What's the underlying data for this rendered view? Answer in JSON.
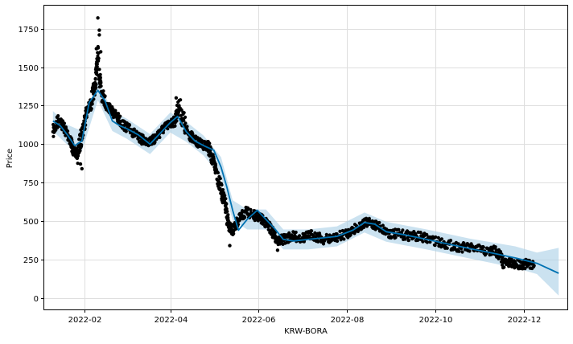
{
  "chart_data": {
    "type": "scatter",
    "title": "",
    "xlabel": "KRW-BORA",
    "ylabel": "Price",
    "x_ticks": [
      "2022-02",
      "2022-04",
      "2022-06",
      "2022-08",
      "2022-10",
      "2022-12"
    ],
    "y_ticks": [
      0,
      250,
      500,
      750,
      1000,
      1250,
      1500,
      1750
    ],
    "xlim": [
      "2022-01-04",
      "2022-12-31"
    ],
    "ylim": [
      -75,
      1900
    ],
    "grid": true,
    "legend": "none",
    "colors": {
      "observed": "#000000",
      "forecast": "#0072B2",
      "uncertainty": "#a8cfe6"
    },
    "series": [
      {
        "role": "observed",
        "style": "points",
        "x": [
          "2022-01-10",
          "2022-01-14",
          "2022-01-18",
          "2022-01-22",
          "2022-01-24",
          "2022-01-27",
          "2022-01-30",
          "2022-02-02",
          "2022-02-05",
          "2022-02-08",
          "2022-02-10",
          "2022-02-13",
          "2022-02-16",
          "2022-02-19",
          "2022-02-23",
          "2022-02-28",
          "2022-03-05",
          "2022-03-10",
          "2022-03-15",
          "2022-03-20",
          "2022-03-25",
          "2022-03-30",
          "2022-04-04",
          "2022-04-07",
          "2022-04-12",
          "2022-04-17",
          "2022-04-22",
          "2022-04-27",
          "2022-04-30",
          "2022-05-03",
          "2022-05-06",
          "2022-05-09",
          "2022-05-11",
          "2022-05-14",
          "2022-05-18",
          "2022-05-23",
          "2022-05-28",
          "2022-06-02",
          "2022-06-07",
          "2022-06-11",
          "2022-06-14",
          "2022-06-18",
          "2022-06-24",
          "2022-07-01",
          "2022-07-08",
          "2022-07-16",
          "2022-07-24",
          "2022-08-01",
          "2022-08-08",
          "2022-08-15",
          "2022-08-22",
          "2022-08-30",
          "2022-09-08",
          "2022-09-18",
          "2022-09-28",
          "2022-10-08",
          "2022-10-18",
          "2022-10-28",
          "2022-11-07",
          "2022-11-12",
          "2022-11-17",
          "2022-11-24",
          "2022-12-01",
          "2022-12-08"
        ],
        "y": [
          1080,
          1160,
          1100,
          1030,
          960,
          930,
          1070,
          1200,
          1260,
          1380,
          1550,
          1330,
          1250,
          1220,
          1180,
          1120,
          1090,
          1040,
          1020,
          1020,
          1080,
          1120,
          1150,
          1250,
          1090,
          1030,
          1000,
          990,
          900,
          820,
          700,
          600,
          470,
          440,
          500,
          560,
          540,
          520,
          480,
          420,
          370,
          380,
          400,
          390,
          410,
          380,
          390,
          420,
          460,
          490,
          470,
          420,
          410,
          400,
          380,
          350,
          330,
          320,
          300,
          310,
          230,
          220,
          220,
          210
        ]
      },
      {
        "role": "observed-outliers",
        "style": "points",
        "x": [
          "2022-02-10",
          "2022-02-11",
          "2022-02-11",
          "2022-02-09",
          "2022-01-29",
          "2022-01-30",
          "2022-02-12",
          "2022-04-05",
          "2022-05-12",
          "2022-06-14"
        ],
        "y": [
          1820,
          1740,
          1710,
          1620,
          870,
          840,
          1600,
          1300,
          340,
          310
        ]
      },
      {
        "role": "forecast",
        "style": "line",
        "x": [
          "2022-01-10",
          "2022-01-15",
          "2022-01-20",
          "2022-01-25",
          "2022-01-30",
          "2022-02-04",
          "2022-02-10",
          "2022-02-15",
          "2022-02-20",
          "2022-02-25",
          "2022-03-02",
          "2022-03-10",
          "2022-03-18",
          "2022-03-25",
          "2022-04-01",
          "2022-04-06",
          "2022-04-12",
          "2022-04-18",
          "2022-04-24",
          "2022-05-01",
          "2022-05-06",
          "2022-05-10",
          "2022-05-14",
          "2022-05-18",
          "2022-05-24",
          "2022-05-31",
          "2022-06-06",
          "2022-06-12",
          "2022-06-18",
          "2022-06-25",
          "2022-07-05",
          "2022-07-15",
          "2022-07-25",
          "2022-08-05",
          "2022-08-13",
          "2022-08-20",
          "2022-08-28",
          "2022-09-10",
          "2022-09-25",
          "2022-10-10",
          "2022-10-25",
          "2022-11-10",
          "2022-11-25",
          "2022-12-10",
          "2022-12-25"
        ],
        "y": [
          1150,
          1120,
          1060,
          990,
          1020,
          1270,
          1350,
          1280,
          1150,
          1120,
          1100,
          1060,
          1000,
          1070,
          1140,
          1180,
          1080,
          1020,
          990,
          960,
          850,
          720,
          570,
          440,
          510,
          570,
          510,
          450,
          380,
          370,
          380,
          390,
          400,
          440,
          490,
          480,
          430,
          410,
          380,
          350,
          320,
          290,
          260,
          225,
          160
        ]
      },
      {
        "role": "uncertainty",
        "style": "band",
        "x": [
          "2022-01-10",
          "2022-01-20",
          "2022-01-30",
          "2022-02-10",
          "2022-02-20",
          "2022-03-02",
          "2022-03-18",
          "2022-04-01",
          "2022-04-12",
          "2022-04-24",
          "2022-05-06",
          "2022-05-14",
          "2022-05-24",
          "2022-06-06",
          "2022-06-18",
          "2022-07-05",
          "2022-07-25",
          "2022-08-13",
          "2022-08-28",
          "2022-09-25",
          "2022-10-25",
          "2022-11-25",
          "2022-12-10",
          "2022-12-25"
        ],
        "upper": [
          1215,
          1125,
          1085,
          1415,
          1215,
          1165,
          1065,
          1205,
          1145,
          1055,
          915,
          635,
          575,
          575,
          445,
          445,
          465,
          555,
          495,
          445,
          385,
          335,
          295,
          325
        ],
        "lower": [
          1085,
          995,
          955,
          1285,
          1085,
          1035,
          935,
          1075,
          1015,
          925,
          785,
          505,
          445,
          445,
          315,
          315,
          335,
          425,
          365,
          315,
          255,
          195,
          155,
          15
        ]
      }
    ]
  }
}
